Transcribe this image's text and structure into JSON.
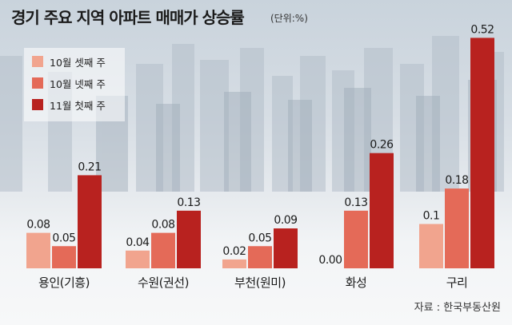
{
  "header": {
    "title": "경기 주요 지역 아파트 매매가 상승률",
    "unit": "(단위:%)"
  },
  "source": "자료 : 한국부동산원",
  "colors": {
    "series1": "#f1a48e",
    "series2": "#e46a58",
    "series3": "#b8221f"
  },
  "chart_data": {
    "type": "bar",
    "title": "경기 주요 지역 아파트 매매가 상승률",
    "unit": "%",
    "categories": [
      "용인(기흥)",
      "수원(권선)",
      "부천(원미)",
      "화성",
      "구리"
    ],
    "series": [
      {
        "name": "10월 셋째 주",
        "values": [
          0.08,
          0.04,
          0.02,
          0.0,
          0.1
        ],
        "labels": [
          "0.08",
          "0.04",
          "0.02",
          "0.00",
          "0.1"
        ]
      },
      {
        "name": "10월 넷째 주",
        "values": [
          0.05,
          0.08,
          0.05,
          0.13,
          0.18
        ],
        "labels": [
          "0.05",
          "0.08",
          "0.05",
          "0.13",
          "0.18"
        ]
      },
      {
        "name": "11월 첫째 주",
        "values": [
          0.21,
          0.13,
          0.09,
          0.26,
          0.52
        ],
        "labels": [
          "0.21",
          "0.13",
          "0.09",
          "0.26",
          "0.52"
        ]
      }
    ],
    "legend_position": "top-left",
    "grid": false
  }
}
